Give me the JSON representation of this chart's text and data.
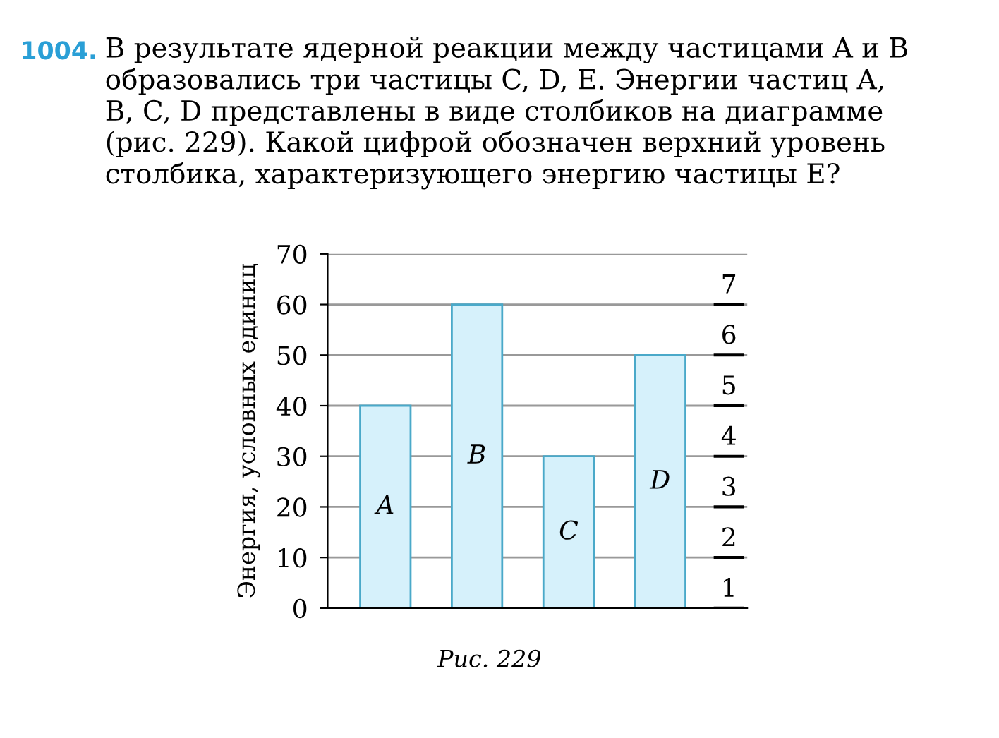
{
  "chart_data": {
    "type": "bar",
    "title": "1004.",
    "subtitle": "В результате ядерной реакции между частицами A и B\nобразовались три частицы C, D, E. Энергии частиц A,\nB, C, D представлены в виде столбиков на диаграмме\n(рис. 229). Какой цифрой обозначен верхний уровень\nстолбика, характеризующего энергию частицы E?",
    "ylabel": "Энергия, условных единиц",
    "categories": [
      "A",
      "B",
      "C",
      "D"
    ],
    "values": [
      40,
      60,
      30,
      50
    ],
    "color": "#d6f1fb",
    "ylim": [
      0,
      70
    ],
    "yticks": [
      0,
      10,
      20,
      30,
      40,
      50,
      60,
      70
    ],
    "grid": "y",
    "annotations": [
      "1",
      "2",
      "3",
      "4",
      "5",
      "6",
      "7",
      "Рис. 229"
    ]
  }
}
